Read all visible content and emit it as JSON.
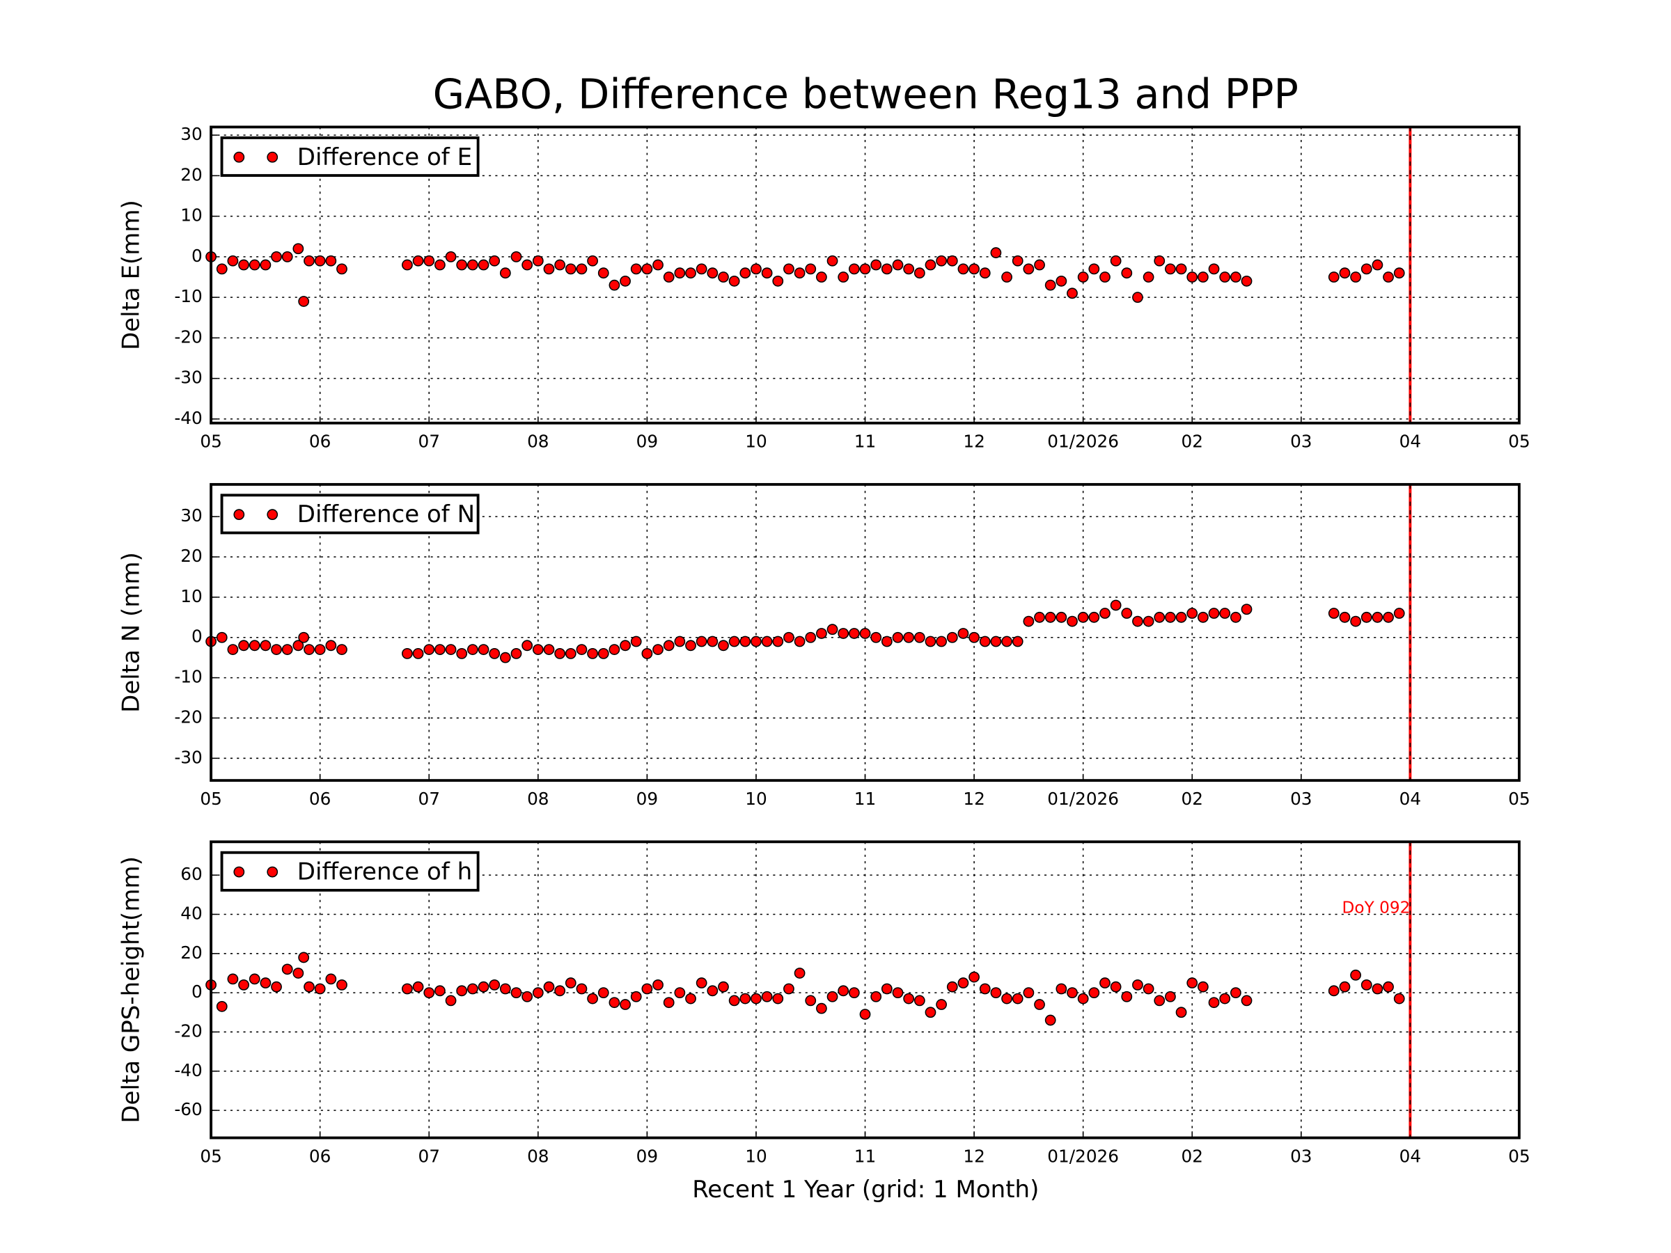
{
  "title": "GABO, Difference between Reg13 and PPP",
  "xlabel": "Recent 1 Year (grid: 1 Month)",
  "chart_data": [
    {
      "type": "scatter",
      "ylabel": "Delta E(mm)",
      "grid": true,
      "legend": "upper left",
      "xlim": [
        0,
        12
      ],
      "xticks": [
        {
          "value": 0,
          "label": "05"
        },
        {
          "value": 1,
          "label": "06"
        },
        {
          "value": 2,
          "label": "07"
        },
        {
          "value": 3,
          "label": "08"
        },
        {
          "value": 4,
          "label": "09"
        },
        {
          "value": 5,
          "label": "10"
        },
        {
          "value": 6,
          "label": "11"
        },
        {
          "value": 7,
          "label": "12"
        },
        {
          "value": 8,
          "label": "01/2026"
        },
        {
          "value": 9,
          "label": "02"
        },
        {
          "value": 10,
          "label": "03"
        },
        {
          "value": 11,
          "label": "04"
        },
        {
          "value": 12,
          "label": "05"
        }
      ],
      "ylim": [
        -41,
        32
      ],
      "yticks": [
        -40,
        -30,
        -20,
        -10,
        0,
        10,
        20,
        30
      ],
      "vline": {
        "x": 11,
        "color": "#ff0000"
      },
      "x": [
        0,
        0.1,
        0.2,
        0.3,
        0.4,
        0.5,
        0.6,
        0.7,
        0.8,
        0.85,
        0.9,
        1.0,
        1.1,
        1.2,
        1.8,
        1.9,
        2.0,
        2.1,
        2.2,
        2.3,
        2.4,
        2.5,
        2.6,
        2.7,
        2.8,
        2.9,
        3.0,
        3.1,
        3.2,
        3.3,
        3.4,
        3.5,
        3.6,
        3.7,
        3.8,
        3.9,
        4.0,
        4.1,
        4.2,
        4.3,
        4.4,
        4.5,
        4.6,
        4.7,
        4.8,
        4.9,
        5.0,
        5.1,
        5.2,
        5.3,
        5.4,
        5.5,
        5.6,
        5.7,
        5.8,
        5.9,
        6.0,
        6.1,
        6.2,
        6.3,
        6.4,
        6.5,
        6.6,
        6.7,
        6.8,
        6.9,
        7.0,
        7.1,
        7.2,
        7.3,
        7.4,
        7.5,
        7.6,
        7.7,
        7.8,
        7.9,
        8.0,
        8.1,
        8.2,
        8.3,
        8.4,
        8.5,
        8.6,
        8.7,
        8.8,
        8.9,
        9.0,
        9.1,
        9.2,
        9.3,
        9.4,
        9.5,
        10.3,
        10.4,
        10.5,
        10.6,
        10.7,
        10.8,
        10.9
      ],
      "series": [
        {
          "name": "Difference of E",
          "color": "#ff0000",
          "values": [
            0,
            -3,
            -1,
            -2,
            -2,
            -2,
            0,
            0,
            2,
            -11,
            -1,
            -1,
            -1,
            -3,
            -2,
            -1,
            -1,
            -2,
            0,
            -2,
            -2,
            -2,
            -1,
            -4,
            0,
            -2,
            -1,
            -3,
            -2,
            -3,
            -3,
            -1,
            -4,
            -7,
            -6,
            -3,
            -3,
            -2,
            -5,
            -4,
            -4,
            -3,
            -4,
            -5,
            -6,
            -4,
            -3,
            -4,
            -6,
            -3,
            -4,
            -3,
            -5,
            -1,
            -5,
            -3,
            -3,
            -2,
            -3,
            -2,
            -3,
            -4,
            -2,
            -1,
            -1,
            -3,
            -3,
            -4,
            1,
            -5,
            -1,
            -3,
            -2,
            -7,
            -6,
            -9,
            -5,
            -3,
            -5,
            -1,
            -4,
            -10,
            -5,
            -1,
            -3,
            -3,
            -5,
            -5,
            -3,
            -5,
            -5,
            -6,
            -5,
            -4,
            -5,
            -3,
            -2,
            -5,
            -4
          ]
        }
      ]
    },
    {
      "type": "scatter",
      "ylabel": "Delta N (mm)",
      "grid": true,
      "legend": "upper left",
      "xlim": [
        0,
        12
      ],
      "xticks": [
        {
          "value": 0,
          "label": "05"
        },
        {
          "value": 1,
          "label": "06"
        },
        {
          "value": 2,
          "label": "07"
        },
        {
          "value": 3,
          "label": "08"
        },
        {
          "value": 4,
          "label": "09"
        },
        {
          "value": 5,
          "label": "10"
        },
        {
          "value": 6,
          "label": "11"
        },
        {
          "value": 7,
          "label": "12"
        },
        {
          "value": 8,
          "label": "01/2026"
        },
        {
          "value": 9,
          "label": "02"
        },
        {
          "value": 10,
          "label": "03"
        },
        {
          "value": 11,
          "label": "04"
        },
        {
          "value": 12,
          "label": "05"
        }
      ],
      "ylim": [
        -35.5,
        38
      ],
      "yticks": [
        -30,
        -20,
        -10,
        0,
        10,
        20,
        30
      ],
      "vline": {
        "x": 11,
        "color": "#ff0000"
      },
      "x": [
        0,
        0.1,
        0.2,
        0.3,
        0.4,
        0.5,
        0.6,
        0.7,
        0.8,
        0.85,
        0.9,
        1.0,
        1.1,
        1.2,
        1.8,
        1.9,
        2.0,
        2.1,
        2.2,
        2.3,
        2.4,
        2.5,
        2.6,
        2.7,
        2.8,
        2.9,
        3.0,
        3.1,
        3.2,
        3.3,
        3.4,
        3.5,
        3.6,
        3.7,
        3.8,
        3.9,
        4.0,
        4.1,
        4.2,
        4.3,
        4.4,
        4.5,
        4.6,
        4.7,
        4.8,
        4.9,
        5.0,
        5.1,
        5.2,
        5.3,
        5.4,
        5.5,
        5.6,
        5.7,
        5.8,
        5.9,
        6.0,
        6.1,
        6.2,
        6.3,
        6.4,
        6.5,
        6.6,
        6.7,
        6.8,
        6.9,
        7.0,
        7.1,
        7.2,
        7.3,
        7.4,
        7.5,
        7.6,
        7.7,
        7.8,
        7.9,
        8.0,
        8.1,
        8.2,
        8.3,
        8.4,
        8.5,
        8.6,
        8.7,
        8.8,
        8.9,
        9.0,
        9.1,
        9.2,
        9.3,
        9.4,
        9.5,
        10.3,
        10.4,
        10.5,
        10.6,
        10.7,
        10.8,
        10.9
      ],
      "series": [
        {
          "name": "Difference of N",
          "color": "#ff0000",
          "values": [
            -1,
            0,
            -3,
            -2,
            -2,
            -2,
            -3,
            -3,
            -2,
            0,
            -3,
            -3,
            -2,
            -3,
            -4,
            -4,
            -3,
            -3,
            -3,
            -4,
            -3,
            -3,
            -4,
            -5,
            -4,
            -2,
            -3,
            -3,
            -4,
            -4,
            -3,
            -4,
            -4,
            -3,
            -2,
            -1,
            -4,
            -3,
            -2,
            -1,
            -2,
            -1,
            -1,
            -2,
            -1,
            -1,
            -1,
            -1,
            -1,
            0,
            -1,
            0,
            1,
            2,
            1,
            1,
            1,
            0,
            -1,
            0,
            0,
            0,
            -1,
            -1,
            0,
            1,
            0,
            -1,
            -1,
            -1,
            -1,
            4,
            5,
            5,
            5,
            4,
            5,
            5,
            6,
            8,
            6,
            4,
            4,
            5,
            5,
            5,
            6,
            5,
            6,
            6,
            5,
            7,
            6,
            5,
            4,
            5,
            5,
            5,
            6
          ]
        }
      ]
    },
    {
      "type": "scatter",
      "ylabel": "Delta GPS-height(mm)",
      "grid": true,
      "legend": "upper left",
      "annotation": "DoY 092",
      "xlim": [
        0,
        12
      ],
      "xticks": [
        {
          "value": 0,
          "label": "05"
        },
        {
          "value": 1,
          "label": "06"
        },
        {
          "value": 2,
          "label": "07"
        },
        {
          "value": 3,
          "label": "08"
        },
        {
          "value": 4,
          "label": "09"
        },
        {
          "value": 5,
          "label": "10"
        },
        {
          "value": 6,
          "label": "11"
        },
        {
          "value": 7,
          "label": "12"
        },
        {
          "value": 8,
          "label": "01/2026"
        },
        {
          "value": 9,
          "label": "02"
        },
        {
          "value": 10,
          "label": "03"
        },
        {
          "value": 11,
          "label": "04"
        },
        {
          "value": 12,
          "label": "05"
        }
      ],
      "ylim": [
        -74,
        77
      ],
      "yticks": [
        -60,
        -40,
        -20,
        0,
        20,
        40,
        60
      ],
      "vline": {
        "x": 11,
        "color": "#ff0000"
      },
      "x": [
        0,
        0.1,
        0.2,
        0.3,
        0.4,
        0.5,
        0.6,
        0.7,
        0.8,
        0.85,
        0.9,
        1.0,
        1.1,
        1.2,
        1.8,
        1.9,
        2.0,
        2.1,
        2.2,
        2.3,
        2.4,
        2.5,
        2.6,
        2.7,
        2.8,
        2.9,
        3.0,
        3.1,
        3.2,
        3.3,
        3.4,
        3.5,
        3.6,
        3.7,
        3.8,
        3.9,
        4.0,
        4.1,
        4.2,
        4.3,
        4.4,
        4.5,
        4.6,
        4.7,
        4.8,
        4.9,
        5.0,
        5.1,
        5.2,
        5.3,
        5.4,
        5.5,
        5.6,
        5.7,
        5.8,
        5.9,
        6.0,
        6.1,
        6.2,
        6.3,
        6.4,
        6.5,
        6.6,
        6.7,
        6.8,
        6.9,
        7.0,
        7.1,
        7.2,
        7.3,
        7.4,
        7.5,
        7.6,
        7.7,
        7.8,
        7.9,
        8.0,
        8.1,
        8.2,
        8.3,
        8.4,
        8.5,
        8.6,
        8.7,
        8.8,
        8.9,
        9.0,
        9.1,
        9.2,
        9.3,
        9.4,
        9.5,
        10.3,
        10.4,
        10.5,
        10.6,
        10.7,
        10.8,
        10.9
      ],
      "series": [
        {
          "name": "Difference of h",
          "color": "#ff0000",
          "values": [
            4,
            -7,
            7,
            4,
            7,
            5,
            3,
            12,
            10,
            18,
            3,
            2,
            7,
            4,
            2,
            3,
            0,
            1,
            -4,
            1,
            2,
            3,
            4,
            2,
            0,
            -2,
            0,
            3,
            1,
            5,
            2,
            -3,
            0,
            -5,
            -6,
            -2,
            2,
            4,
            -5,
            0,
            -3,
            5,
            1,
            3,
            -4,
            -3,
            -3,
            -2,
            -3,
            2,
            10,
            -4,
            -8,
            -2,
            1,
            0,
            -11,
            -2,
            2,
            0,
            -3,
            -4,
            -10,
            -6,
            3,
            5,
            8,
            2,
            0,
            -3,
            -3,
            0,
            -6,
            -14,
            2,
            0,
            -3,
            0,
            5,
            3,
            -2,
            4,
            2,
            -4,
            -2,
            -10,
            5,
            3,
            -5,
            -3,
            0,
            -4,
            1,
            3,
            9,
            4,
            2,
            3,
            -3
          ]
        }
      ]
    }
  ]
}
